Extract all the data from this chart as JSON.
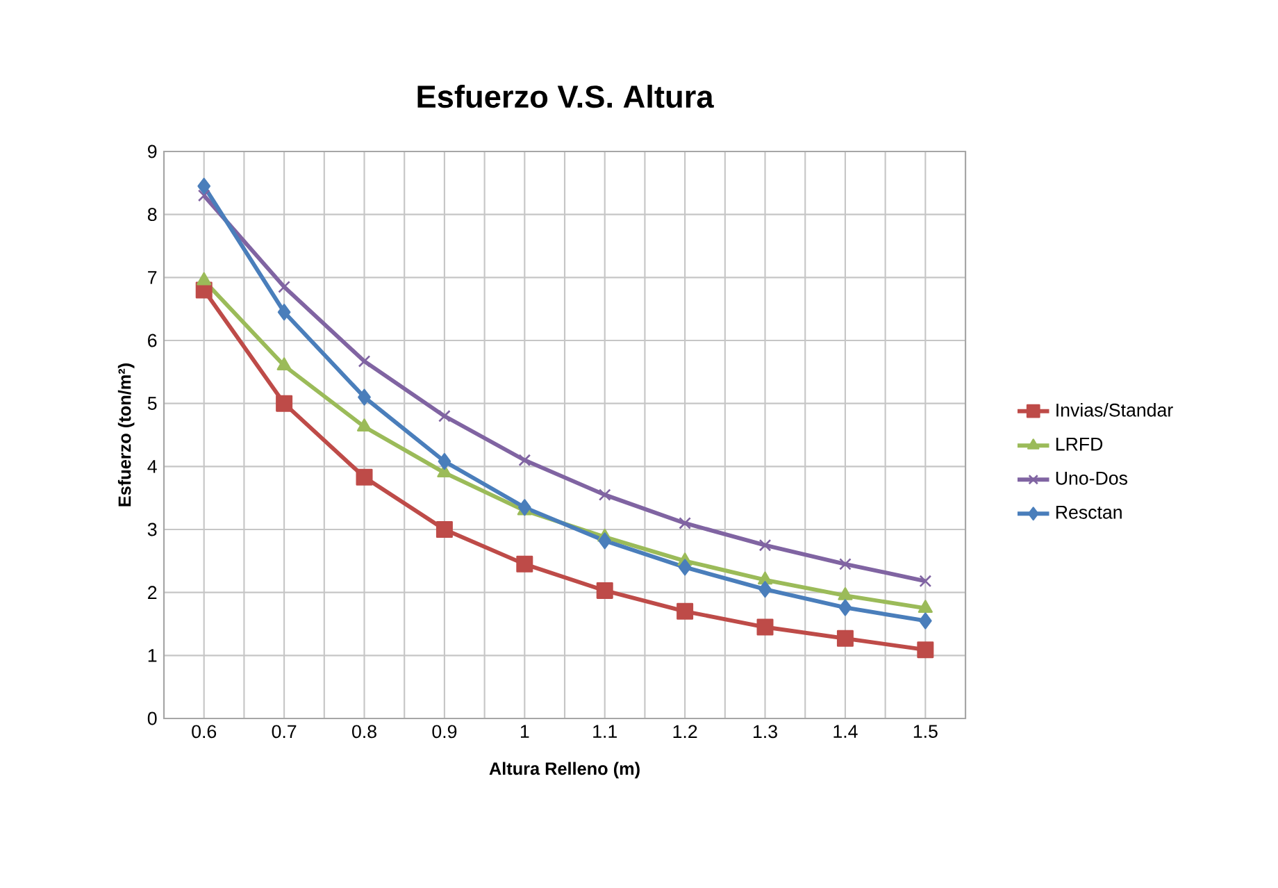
{
  "chart_data": {
    "type": "line",
    "title": "Esfuerzo V.S. Altura",
    "xlabel": "Altura Relleno (m)",
    "ylabel": "Esfuerzo (ton/m²)",
    "categories": [
      "0.6",
      "0.7",
      "0.8",
      "0.9",
      "1",
      "1.1",
      "1.2",
      "1.3",
      "1.4",
      "1.5"
    ],
    "ylim": [
      0,
      9
    ],
    "yticks": [
      0,
      1,
      2,
      3,
      4,
      5,
      6,
      7,
      8,
      9
    ],
    "grid": true,
    "legend": "right",
    "line_style": "solid",
    "series": [
      {
        "name": "Invias/Standar",
        "color": "#be4b48",
        "marker": "square",
        "values": [
          6.8,
          5.0,
          3.83,
          3.0,
          2.45,
          2.03,
          1.7,
          1.45,
          1.27,
          1.09
        ]
      },
      {
        "name": "LRFD",
        "color": "#9bbb59",
        "marker": "triangle",
        "values": [
          6.95,
          5.6,
          4.63,
          3.9,
          3.3,
          2.88,
          2.5,
          2.2,
          1.95,
          1.75
        ]
      },
      {
        "name": "Uno-Dos",
        "color": "#8064a2",
        "marker": "cross",
        "values": [
          8.3,
          6.85,
          5.67,
          4.8,
          4.1,
          3.55,
          3.1,
          2.75,
          2.45,
          2.18
        ]
      },
      {
        "name": "Resctan",
        "color": "#4a7ebb",
        "marker": "diamond",
        "values": [
          8.45,
          6.45,
          5.1,
          4.08,
          3.35,
          2.82,
          2.4,
          2.05,
          1.76,
          1.55
        ]
      }
    ]
  }
}
